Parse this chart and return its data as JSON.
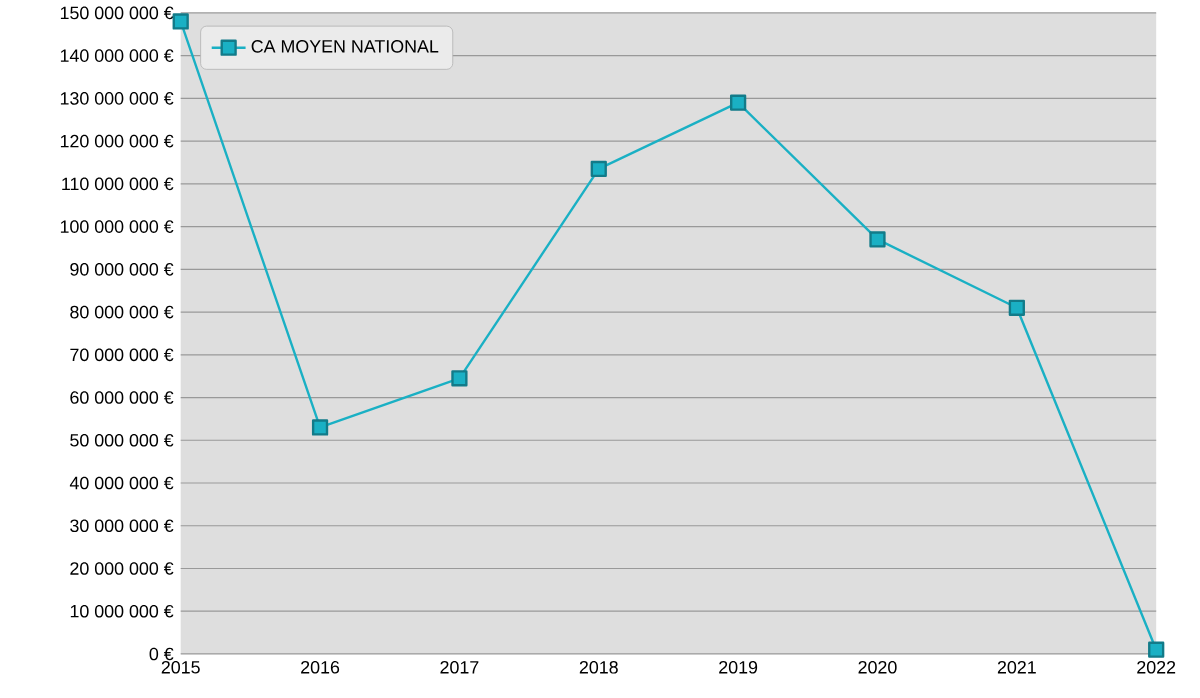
{
  "chart_data": {
    "type": "line",
    "x": [
      2015,
      2016,
      2017,
      2018,
      2019,
      2020,
      2021,
      2022
    ],
    "series": [
      {
        "name": "CA MOYEN NATIONAL",
        "color": "#1ab0c4",
        "values": [
          148000000,
          53000000,
          64500000,
          113500000,
          129000000,
          97000000,
          81000000,
          1000000
        ]
      }
    ],
    "xlim": [
      2015,
      2022
    ],
    "xticks": [
      2015,
      2016,
      2017,
      2018,
      2019,
      2020,
      2021,
      2022
    ],
    "ylim": [
      0,
      150000000
    ],
    "yticks": [
      {
        "value": 0,
        "label": "0 €"
      },
      {
        "value": 10000000,
        "label": "10 000 000 €"
      },
      {
        "value": 20000000,
        "label": "20 000 000 €"
      },
      {
        "value": 30000000,
        "label": "30 000 000 €"
      },
      {
        "value": 40000000,
        "label": "40 000 000 €"
      },
      {
        "value": 50000000,
        "label": "50 000 000 €"
      },
      {
        "value": 60000000,
        "label": "60 000 000 €"
      },
      {
        "value": 70000000,
        "label": "70 000 000 €"
      },
      {
        "value": 80000000,
        "label": "80 000 000 €"
      },
      {
        "value": 90000000,
        "label": "90 000 000 €"
      },
      {
        "value": 100000000,
        "label": "100 000 000 €"
      },
      {
        "value": 110000000,
        "label": "110 000 000 €"
      },
      {
        "value": 120000000,
        "label": "120 000 000 €"
      },
      {
        "value": 130000000,
        "label": "130 000 000 €"
      },
      {
        "value": 140000000,
        "label": "140 000 000 €"
      },
      {
        "value": 150000000,
        "label": "150 000 000 €"
      }
    ],
    "grid": "y",
    "legend": "top left",
    "marker": "square",
    "line_style": "solid"
  }
}
